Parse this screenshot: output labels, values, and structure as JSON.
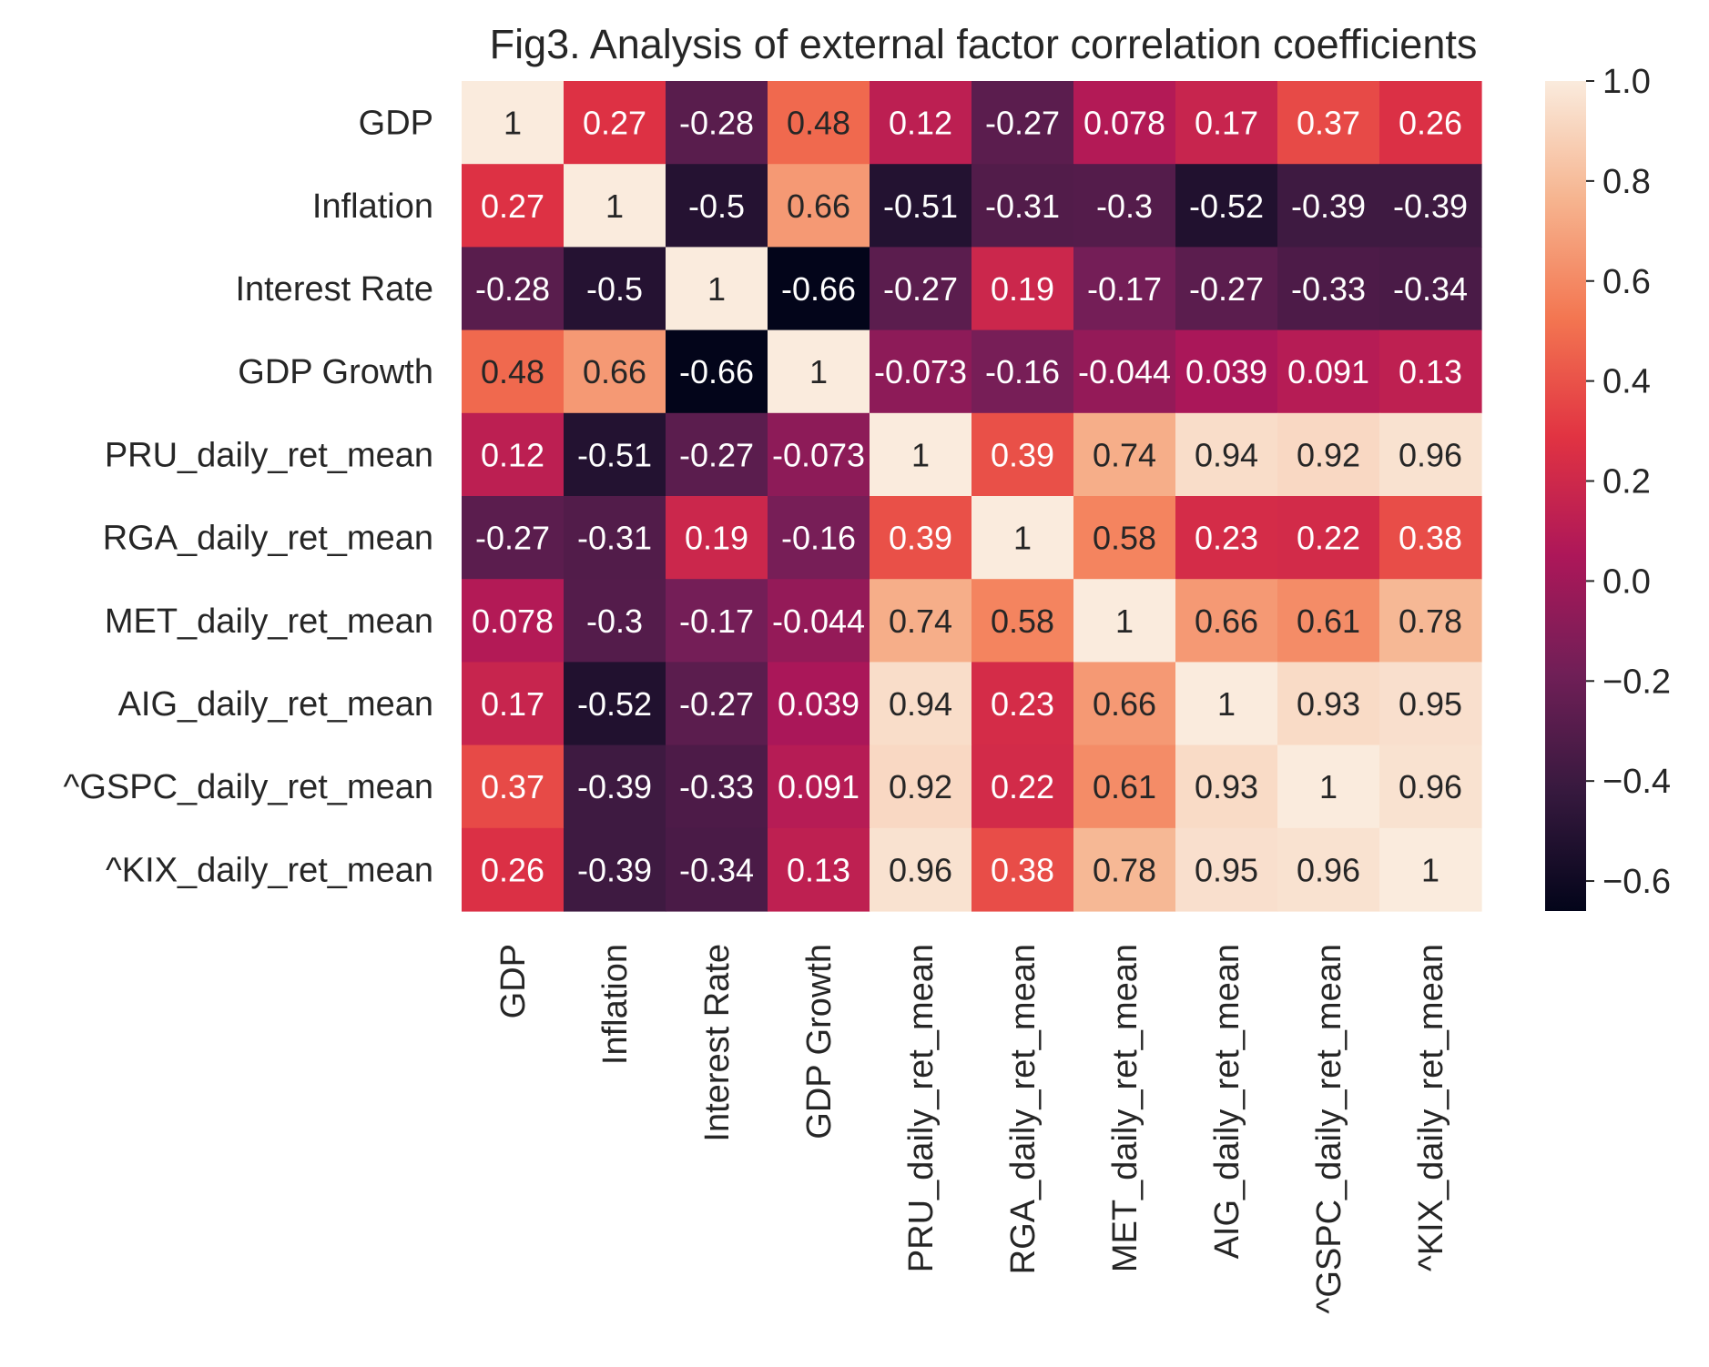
{
  "chart_data": {
    "type": "heatmap",
    "title": "Fig3. Analysis of external factor correlation coefficients",
    "xlabel": "",
    "ylabel": "",
    "rows": [
      "GDP",
      "Inflation",
      "Interest Rate",
      "GDP Growth",
      "PRU_daily_ret_mean",
      "RGA_daily_ret_mean",
      "MET_daily_ret_mean",
      "AIG_daily_ret_mean",
      "^GSPC_daily_ret_mean",
      "^KIX_daily_ret_mean"
    ],
    "columns": [
      "GDP",
      "Inflation",
      "Interest Rate",
      "GDP Growth",
      "PRU_daily_ret_mean",
      "RGA_daily_ret_mean",
      "MET_daily_ret_mean",
      "AIG_daily_ret_mean",
      "^GSPC_daily_ret_mean",
      "^KIX_daily_ret_mean"
    ],
    "values": [
      [
        1,
        0.27,
        -0.28,
        0.48,
        0.12,
        -0.27,
        0.078,
        0.17,
        0.37,
        0.26
      ],
      [
        0.27,
        1,
        -0.5,
        0.66,
        -0.51,
        -0.31,
        -0.3,
        -0.52,
        -0.39,
        -0.39
      ],
      [
        -0.28,
        -0.5,
        1,
        -0.66,
        -0.27,
        0.19,
        -0.17,
        -0.27,
        -0.33,
        -0.34
      ],
      [
        0.48,
        0.66,
        -0.66,
        1,
        -0.073,
        -0.16,
        -0.044,
        0.039,
        0.091,
        0.13
      ],
      [
        0.12,
        -0.51,
        -0.27,
        -0.073,
        1,
        0.39,
        0.74,
        0.94,
        0.92,
        0.96
      ],
      [
        -0.27,
        -0.31,
        0.19,
        -0.16,
        0.39,
        1,
        0.58,
        0.23,
        0.22,
        0.38
      ],
      [
        0.078,
        -0.3,
        -0.17,
        -0.044,
        0.74,
        0.58,
        1,
        0.66,
        0.61,
        0.78
      ],
      [
        0.17,
        -0.52,
        -0.27,
        0.039,
        0.94,
        0.23,
        0.66,
        1,
        0.93,
        0.95
      ],
      [
        0.37,
        -0.39,
        -0.33,
        0.091,
        0.92,
        0.22,
        0.61,
        0.93,
        1,
        0.96
      ],
      [
        0.26,
        -0.39,
        -0.34,
        0.13,
        0.96,
        0.38,
        0.78,
        0.95,
        0.96,
        1
      ]
    ],
    "annotations": [
      [
        "1",
        "0.27",
        "-0.28",
        "0.48",
        "0.12",
        "-0.27",
        "0.078",
        "0.17",
        "0.37",
        "0.26"
      ],
      [
        "0.27",
        "1",
        "-0.5",
        "0.66",
        "-0.51",
        "-0.31",
        "-0.3",
        "-0.52",
        "-0.39",
        "-0.39"
      ],
      [
        "-0.28",
        "-0.5",
        "1",
        "-0.66",
        "-0.27",
        "0.19",
        "-0.17",
        "-0.27",
        "-0.33",
        "-0.34"
      ],
      [
        "0.48",
        "0.66",
        "-0.66",
        "1",
        "-0.073",
        "-0.16",
        "-0.044",
        "0.039",
        "0.091",
        "0.13"
      ],
      [
        "0.12",
        "-0.51",
        "-0.27",
        "-0.073",
        "1",
        "0.39",
        "0.74",
        "0.94",
        "0.92",
        "0.96"
      ],
      [
        "-0.27",
        "-0.31",
        "0.19",
        "-0.16",
        "0.39",
        "1",
        "0.58",
        "0.23",
        "0.22",
        "0.38"
      ],
      [
        "0.078",
        "-0.3",
        "-0.17",
        "-0.044",
        "0.74",
        "0.58",
        "1",
        "0.66",
        "0.61",
        "0.78"
      ],
      [
        "0.17",
        "-0.52",
        "-0.27",
        "0.039",
        "0.94",
        "0.23",
        "0.66",
        "1",
        "0.93",
        "0.95"
      ],
      [
        "0.37",
        "-0.39",
        "-0.33",
        "0.091",
        "0.92",
        "0.22",
        "0.61",
        "0.93",
        "1",
        "0.96"
      ],
      [
        "0.26",
        "-0.39",
        "-0.34",
        "0.13",
        "0.96",
        "0.38",
        "0.78",
        "0.95",
        "0.96",
        "1"
      ]
    ],
    "colorbar": {
      "range": [
        -0.66,
        1.0
      ],
      "ticks": [
        1.0,
        0.8,
        0.6,
        0.4,
        0.2,
        0.0,
        -0.2,
        -0.4,
        -0.6
      ],
      "tick_labels": [
        "1.0",
        "0.8",
        "0.6",
        "0.4",
        "0.2",
        "0.0",
        "−0.2",
        "−0.4",
        "−0.6"
      ],
      "colormap": "rocket",
      "colormap_stops": [
        "#03051a",
        "#36193e",
        "#701f57",
        "#ad1759",
        "#e13342",
        "#f37651",
        "#f6b48f",
        "#faebdd"
      ]
    },
    "grid": false,
    "legend": "colorbar-right"
  }
}
